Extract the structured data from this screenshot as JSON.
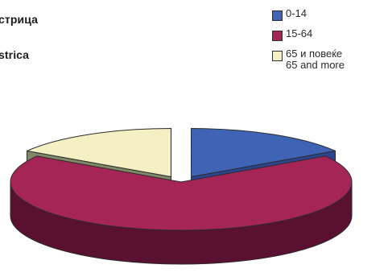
{
  "chart_data": {
    "type": "pie",
    "title_lines": [
      "стрица",
      "strica"
    ],
    "categories": [
      "0-14",
      "15-64",
      "65 и повеќе\n65 and more"
    ],
    "values": [
      16,
      68,
      16
    ],
    "colors": [
      "#3f63b5",
      "#a52556",
      "#f4f0c4"
    ],
    "side_colors": [
      "#2d4590",
      "#5a1030",
      "#7f8968"
    ],
    "exploded": [
      true,
      false,
      true
    ]
  }
}
